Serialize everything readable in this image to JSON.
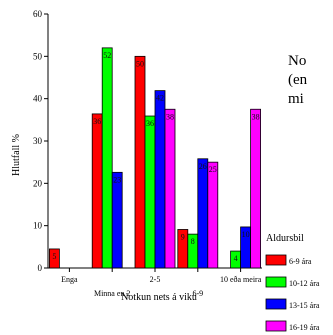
{
  "intro_text": "No\n(en\nmi",
  "chart_data": {
    "type": "bar",
    "title": "",
    "xlabel": "Notkun nets á viku",
    "ylabel": "Hlutfall %",
    "ylim": [
      0,
      60
    ],
    "yticks": [
      0,
      10,
      20,
      30,
      40,
      50,
      60
    ],
    "grid": false,
    "legend_title": "Aldursbil",
    "legend_position": "right",
    "categories": [
      "Enga",
      "Minna en 2",
      "2-5",
      "6-9",
      "10 eða meira"
    ],
    "series": [
      {
        "name": "6-9 ára",
        "color": "#ff0000",
        "values": [
          4.5,
          36.4,
          50,
          9.1,
          0
        ],
        "labels": [
          "5",
          "36",
          "50",
          "9",
          ""
        ]
      },
      {
        "name": "10-12 ára",
        "color": "#00ff00",
        "values": [
          0,
          52,
          35.9,
          8,
          4
        ],
        "labels": [
          "",
          "52",
          "36",
          "8",
          "4"
        ]
      },
      {
        "name": "13-15 ára",
        "color": "#0000ff",
        "values": [
          0,
          22.6,
          41.9,
          25.8,
          9.7
        ],
        "labels": [
          "",
          "23",
          "42",
          "26",
          "10"
        ]
      },
      {
        "name": "16-19 ára",
        "color": "#ff00ff",
        "values": [
          0,
          0,
          37.5,
          25,
          37.5
        ],
        "labels": [
          "",
          "",
          "38",
          "25",
          "38"
        ]
      }
    ]
  }
}
